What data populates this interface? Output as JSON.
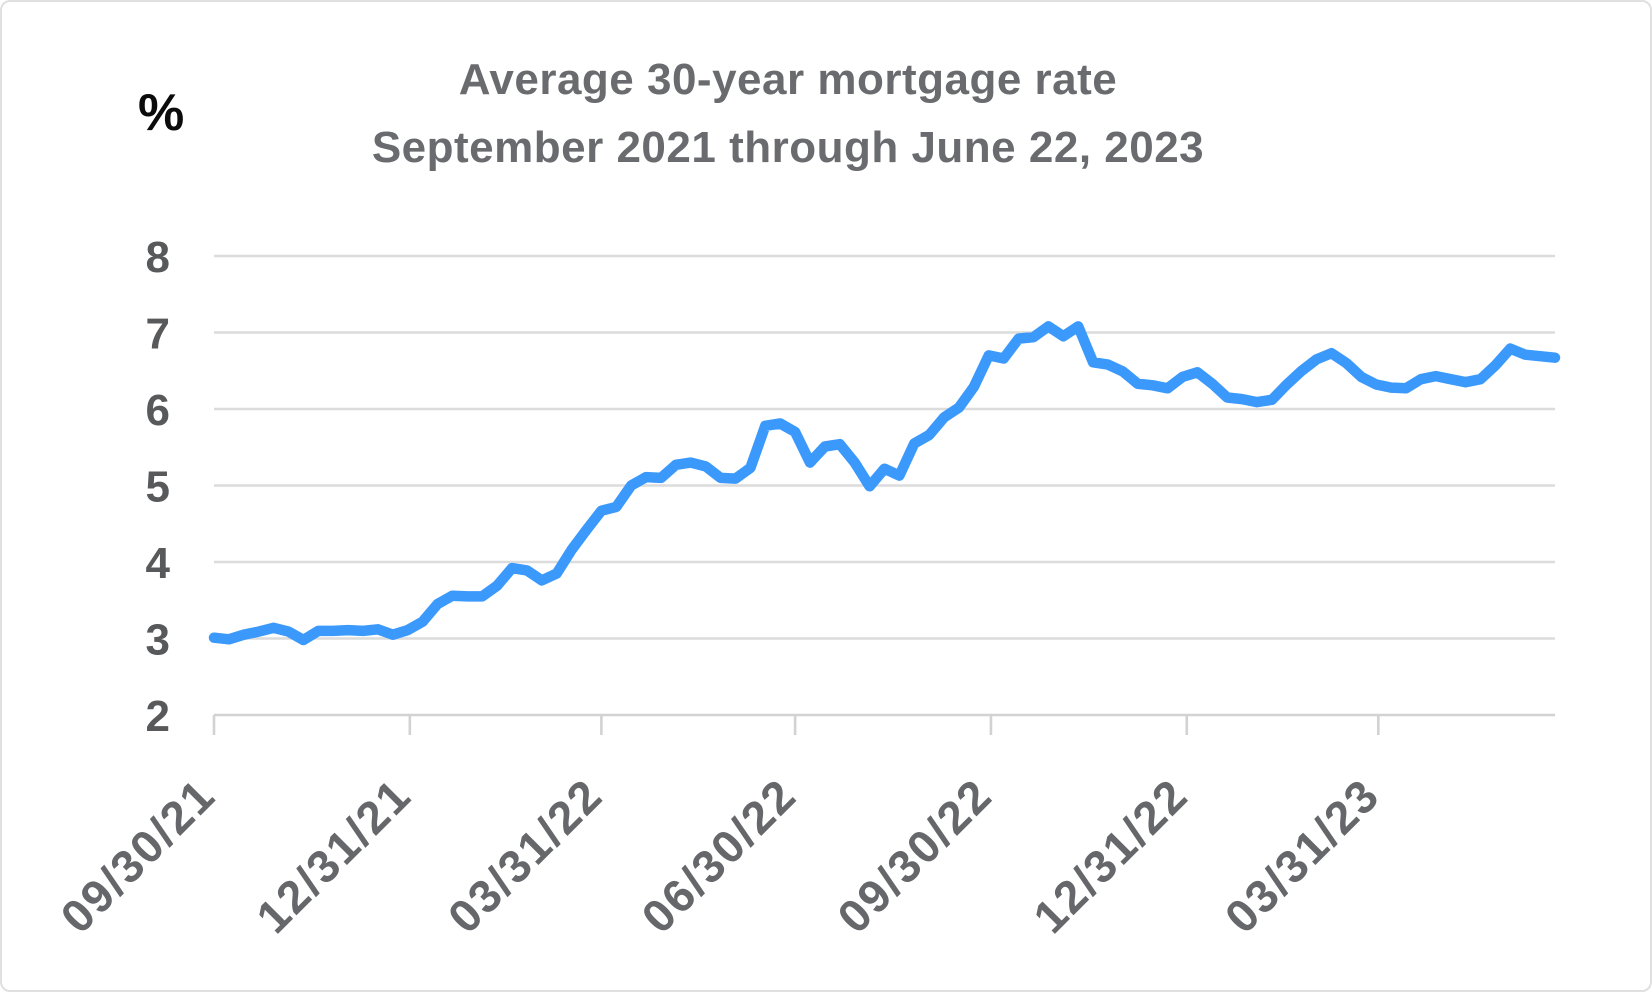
{
  "chart_data": {
    "type": "line",
    "title": "Average 30-year mortgage rate",
    "subtitle": "September 2021 through June 22, 2023",
    "ylabel": "%",
    "xlabel": "",
    "ylim": [
      2,
      8
    ],
    "yticks": [
      2,
      3,
      4,
      5,
      6,
      7,
      8
    ],
    "grid": true,
    "legend_position": "none",
    "line_color": "#3b99fc",
    "x_start": "2021-09-30",
    "x_end": "2023-06-22",
    "xticks": [
      {
        "date": "2021-09-30",
        "label": "09/30/21"
      },
      {
        "date": "2021-12-31",
        "label": "12/31/21"
      },
      {
        "date": "2022-03-31",
        "label": "03/31/22"
      },
      {
        "date": "2022-06-30",
        "label": "06/30/22"
      },
      {
        "date": "2022-09-30",
        "label": "09/30/22"
      },
      {
        "date": "2022-12-31",
        "label": "12/31/22"
      },
      {
        "date": "2023-03-31",
        "label": "03/31/23"
      }
    ],
    "series": [
      {
        "name": "Average 30-year mortgage rate (%)",
        "points": [
          [
            "2021-09-30",
            3.01
          ],
          [
            "2021-10-07",
            2.99
          ],
          [
            "2021-10-14",
            3.05
          ],
          [
            "2021-10-21",
            3.09
          ],
          [
            "2021-10-28",
            3.14
          ],
          [
            "2021-11-04",
            3.09
          ],
          [
            "2021-11-11",
            2.98
          ],
          [
            "2021-11-18",
            3.1
          ],
          [
            "2021-11-25",
            3.1
          ],
          [
            "2021-12-02",
            3.11
          ],
          [
            "2021-12-09",
            3.1
          ],
          [
            "2021-12-16",
            3.12
          ],
          [
            "2021-12-23",
            3.05
          ],
          [
            "2021-12-30",
            3.11
          ],
          [
            "2022-01-06",
            3.22
          ],
          [
            "2022-01-13",
            3.45
          ],
          [
            "2022-01-20",
            3.56
          ],
          [
            "2022-01-27",
            3.55
          ],
          [
            "2022-02-03",
            3.55
          ],
          [
            "2022-02-10",
            3.69
          ],
          [
            "2022-02-17",
            3.92
          ],
          [
            "2022-02-24",
            3.89
          ],
          [
            "2022-03-03",
            3.76
          ],
          [
            "2022-03-10",
            3.85
          ],
          [
            "2022-03-17",
            4.16
          ],
          [
            "2022-03-24",
            4.42
          ],
          [
            "2022-03-31",
            4.67
          ],
          [
            "2022-04-07",
            4.72
          ],
          [
            "2022-04-14",
            5.0
          ],
          [
            "2022-04-21",
            5.11
          ],
          [
            "2022-04-28",
            5.1
          ],
          [
            "2022-05-05",
            5.27
          ],
          [
            "2022-05-12",
            5.3
          ],
          [
            "2022-05-19",
            5.25
          ],
          [
            "2022-05-26",
            5.1
          ],
          [
            "2022-06-02",
            5.09
          ],
          [
            "2022-06-09",
            5.23
          ],
          [
            "2022-06-16",
            5.78
          ],
          [
            "2022-06-23",
            5.81
          ],
          [
            "2022-06-30",
            5.7
          ],
          [
            "2022-07-07",
            5.3
          ],
          [
            "2022-07-14",
            5.51
          ],
          [
            "2022-07-21",
            5.54
          ],
          [
            "2022-07-28",
            5.3
          ],
          [
            "2022-08-04",
            4.99
          ],
          [
            "2022-08-11",
            5.22
          ],
          [
            "2022-08-18",
            5.13
          ],
          [
            "2022-08-25",
            5.55
          ],
          [
            "2022-09-01",
            5.66
          ],
          [
            "2022-09-08",
            5.89
          ],
          [
            "2022-09-15",
            6.02
          ],
          [
            "2022-09-22",
            6.29
          ],
          [
            "2022-09-29",
            6.7
          ],
          [
            "2022-10-06",
            6.66
          ],
          [
            "2022-10-13",
            6.92
          ],
          [
            "2022-10-20",
            6.94
          ],
          [
            "2022-10-27",
            7.08
          ],
          [
            "2022-11-03",
            6.95
          ],
          [
            "2022-11-10",
            7.08
          ],
          [
            "2022-11-17",
            6.61
          ],
          [
            "2022-11-24",
            6.58
          ],
          [
            "2022-12-01",
            6.49
          ],
          [
            "2022-12-08",
            6.33
          ],
          [
            "2022-12-15",
            6.31
          ],
          [
            "2022-12-22",
            6.27
          ],
          [
            "2022-12-29",
            6.42
          ],
          [
            "2023-01-05",
            6.48
          ],
          [
            "2023-01-12",
            6.33
          ],
          [
            "2023-01-19",
            6.15
          ],
          [
            "2023-01-26",
            6.13
          ],
          [
            "2023-02-02",
            6.09
          ],
          [
            "2023-02-09",
            6.12
          ],
          [
            "2023-02-16",
            6.32
          ],
          [
            "2023-02-23",
            6.5
          ],
          [
            "2023-03-02",
            6.65
          ],
          [
            "2023-03-09",
            6.73
          ],
          [
            "2023-03-16",
            6.6
          ],
          [
            "2023-03-23",
            6.42
          ],
          [
            "2023-03-30",
            6.32
          ],
          [
            "2023-04-06",
            6.28
          ],
          [
            "2023-04-13",
            6.27
          ],
          [
            "2023-04-20",
            6.39
          ],
          [
            "2023-04-27",
            6.43
          ],
          [
            "2023-05-04",
            6.39
          ],
          [
            "2023-05-11",
            6.35
          ],
          [
            "2023-05-18",
            6.39
          ],
          [
            "2023-05-25",
            6.57
          ],
          [
            "2023-06-01",
            6.79
          ],
          [
            "2023-06-08",
            6.71
          ],
          [
            "2023-06-15",
            6.69
          ],
          [
            "2023-06-22",
            6.67
          ]
        ]
      }
    ]
  },
  "colors": {
    "line": "#3b99fc",
    "gridline": "#dcdcdc",
    "axis": "#d2d2d2",
    "title_text": "#6a6b6e",
    "tick_text": "#58595b",
    "unit_text": "#0b0b0b",
    "background": "#ffffff",
    "frame_border": "#e0e0e0"
  }
}
